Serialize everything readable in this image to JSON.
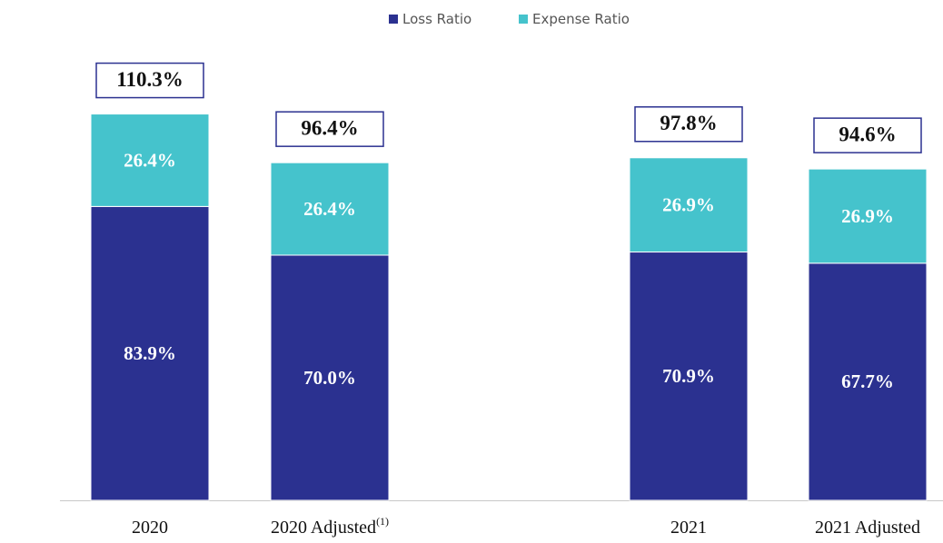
{
  "chart_data": {
    "type": "stacked_bar",
    "categories": [
      "2020",
      "2020 Adjusted",
      "2021",
      "2021 Adjusted"
    ],
    "category_footnotes": [
      null,
      "(1)",
      null,
      null
    ],
    "series": [
      {
        "name": "Loss Ratio",
        "color": "#2b3190",
        "values": [
          83.9,
          70.0,
          70.9,
          67.7
        ],
        "value_labels": [
          "83.9%",
          "70.0%",
          "70.9%",
          "67.7%"
        ]
      },
      {
        "name": "Expense Ratio",
        "color": "#45c3cc",
        "values": [
          26.4,
          26.4,
          26.9,
          26.9
        ],
        "value_labels": [
          "26.4%",
          "26.4%",
          "26.9%",
          "26.9%"
        ]
      }
    ],
    "totals": [
      110.3,
      96.4,
      97.8,
      94.6
    ],
    "total_labels": [
      "110.3%",
      "96.4%",
      "97.8%",
      "94.6%"
    ],
    "ylim": [
      0,
      140
    ],
    "legend": "top"
  }
}
